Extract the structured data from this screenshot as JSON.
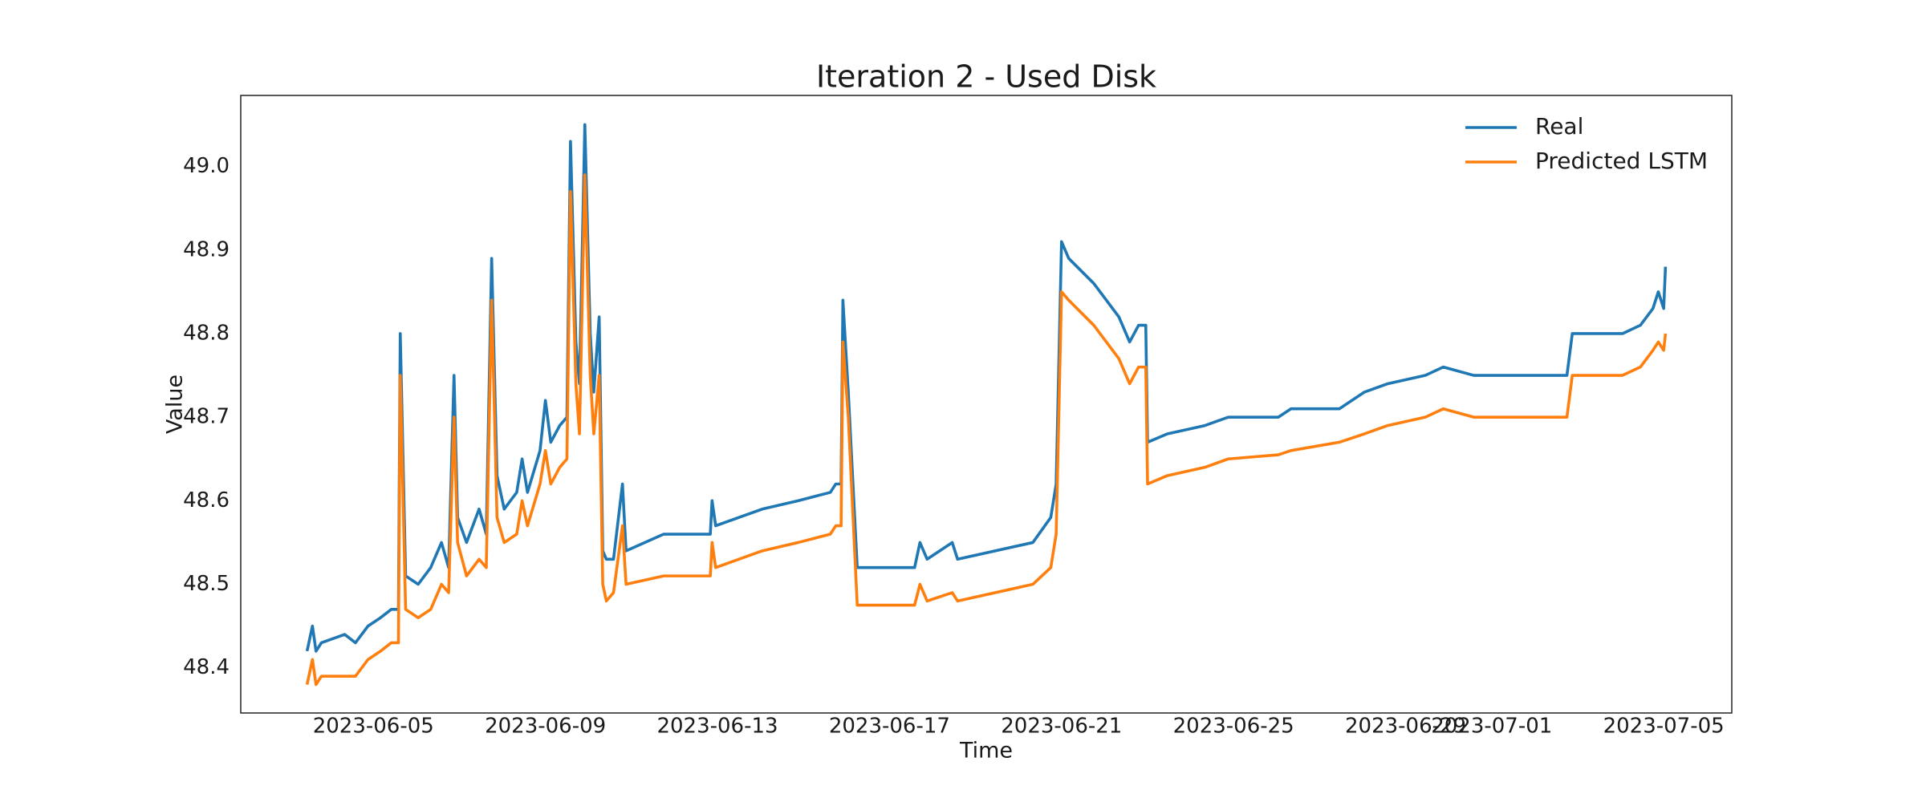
{
  "chart_data": {
    "type": "line",
    "title": "Iteration 2 - Used Disk",
    "x_label": "Time",
    "y_label": "Value",
    "x": [
      "2023-06-03 11:00",
      "2023-06-03 14:00",
      "2023-06-03 16:00",
      "2023-06-03 19:00",
      "2023-06-04 08:00",
      "2023-06-04 14:00",
      "2023-06-04 21:00",
      "2023-06-05 04:00",
      "2023-06-05 10:00",
      "2023-06-05 14:00",
      "2023-06-05 15:00",
      "2023-06-05 18:00",
      "2023-06-06 01:00",
      "2023-06-06 08:00",
      "2023-06-06 14:00",
      "2023-06-06 18:00",
      "2023-06-06 21:00",
      "2023-06-06 23:00",
      "2023-06-07 04:00",
      "2023-06-07 11:00",
      "2023-06-07 15:00",
      "2023-06-07 18:00",
      "2023-06-07 21:00",
      "2023-06-08 01:00",
      "2023-06-08 08:00",
      "2023-06-08 11:00",
      "2023-06-08 14:00",
      "2023-06-08 21:00",
      "2023-06-09 00:00",
      "2023-06-09 03:00",
      "2023-06-09 08:00",
      "2023-06-09 12:00",
      "2023-06-09 14:00",
      "2023-06-09 17:00",
      "2023-06-09 19:00",
      "2023-06-09 22:00",
      "2023-06-10 01:00",
      "2023-06-10 03:00",
      "2023-06-10 06:00",
      "2023-06-10 08:00",
      "2023-06-10 10:00",
      "2023-06-10 14:00",
      "2023-06-10 19:00",
      "2023-06-10 21:00",
      "2023-06-11 18:00",
      "2023-06-12 20:00",
      "2023-06-12 21:00",
      "2023-06-12 23:00",
      "2023-06-14 01:00",
      "2023-06-14 21:00",
      "2023-06-15 15:00",
      "2023-06-15 18:00",
      "2023-06-15 21:00",
      "2023-06-15 22:00",
      "2023-06-16 01:00",
      "2023-06-16 06:00",
      "2023-06-17 14:00",
      "2023-06-17 17:00",
      "2023-06-17 21:00",
      "2023-06-18 11:00",
      "2023-06-18 14:00",
      "2023-06-20 08:00",
      "2023-06-20 18:00",
      "2023-06-20 21:00",
      "2023-06-21 00:00",
      "2023-06-21 04:00",
      "2023-06-21 18:00",
      "2023-06-22 08:00",
      "2023-06-22 14:00",
      "2023-06-22 19:00",
      "2023-06-22 23:00",
      "2023-06-23 00:00",
      "2023-06-23 11:00",
      "2023-06-24 08:00",
      "2023-06-24 21:00",
      "2023-06-26 01:00",
      "2023-06-26 08:00",
      "2023-06-27 11:00",
      "2023-06-28 01:00",
      "2023-06-28 14:00",
      "2023-06-29 11:00",
      "2023-06-29 21:00",
      "2023-06-30 14:00",
      "2023-07-02 18:00",
      "2023-07-02 21:00",
      "2023-07-04 01:00",
      "2023-07-04 11:00",
      "2023-07-04 18:00",
      "2023-07-04 21:00",
      "2023-07-05 00:00",
      "2023-07-05 01:00"
    ],
    "series": [
      {
        "name": "Real",
        "color": "#1f77b4",
        "values": [
          48.42,
          48.45,
          48.42,
          48.43,
          48.44,
          48.43,
          48.45,
          48.46,
          48.47,
          48.47,
          48.8,
          48.51,
          48.5,
          48.52,
          48.55,
          48.52,
          48.75,
          48.58,
          48.55,
          48.59,
          48.56,
          48.89,
          48.63,
          48.59,
          48.61,
          48.65,
          48.61,
          48.66,
          48.72,
          48.67,
          48.69,
          48.7,
          49.03,
          48.79,
          48.74,
          49.05,
          48.8,
          48.73,
          48.82,
          48.54,
          48.53,
          48.53,
          48.62,
          48.54,
          48.56,
          48.56,
          48.6,
          48.57,
          48.59,
          48.6,
          48.61,
          48.62,
          48.62,
          48.84,
          48.73,
          48.52,
          48.52,
          48.55,
          48.53,
          48.55,
          48.53,
          48.55,
          48.58,
          48.62,
          48.91,
          48.89,
          48.86,
          48.82,
          48.79,
          48.81,
          48.81,
          48.67,
          48.68,
          48.69,
          48.7,
          48.7,
          48.71,
          48.71,
          48.73,
          48.74,
          48.75,
          48.76,
          48.75,
          48.75,
          48.8,
          48.8,
          48.81,
          48.83,
          48.85,
          48.83,
          48.88
        ]
      },
      {
        "name": "Predicted LSTM",
        "color": "#ff7f0e",
        "values": [
          48.38,
          48.41,
          48.38,
          48.39,
          48.39,
          48.39,
          48.41,
          48.42,
          48.43,
          48.43,
          48.75,
          48.47,
          48.46,
          48.47,
          48.5,
          48.49,
          48.7,
          48.55,
          48.51,
          48.53,
          48.52,
          48.84,
          48.58,
          48.55,
          48.56,
          48.6,
          48.57,
          48.62,
          48.66,
          48.62,
          48.64,
          48.65,
          48.97,
          48.74,
          48.68,
          48.99,
          48.75,
          48.68,
          48.75,
          48.5,
          48.48,
          48.49,
          48.57,
          48.5,
          48.51,
          48.51,
          48.55,
          48.52,
          48.54,
          48.55,
          48.56,
          48.57,
          48.57,
          48.79,
          48.7,
          48.475,
          48.475,
          48.5,
          48.48,
          48.49,
          48.48,
          48.5,
          48.52,
          48.56,
          48.85,
          48.84,
          48.81,
          48.77,
          48.74,
          48.76,
          48.76,
          48.62,
          48.63,
          48.64,
          48.65,
          48.655,
          48.66,
          48.67,
          48.68,
          48.69,
          48.7,
          48.71,
          48.7,
          48.7,
          48.75,
          48.75,
          48.76,
          48.78,
          48.79,
          48.78,
          48.8
        ]
      }
    ],
    "xlim": [
      "2023-06-01 22:00",
      "2023-07-06 14:00"
    ],
    "xticks": [
      "2023-06-05",
      "2023-06-09",
      "2023-06-13",
      "2023-06-17",
      "2023-06-21",
      "2023-06-25",
      "2023-06-29",
      "2023-07-01",
      "2023-07-05"
    ],
    "ylim": [
      48.346,
      49.085
    ],
    "yticks": [
      48.4,
      48.5,
      48.6,
      48.7,
      48.8,
      48.9,
      {
        "value": 49,
        "label": "49.0"
      }
    ],
    "grid": false,
    "legend": "upper right"
  }
}
